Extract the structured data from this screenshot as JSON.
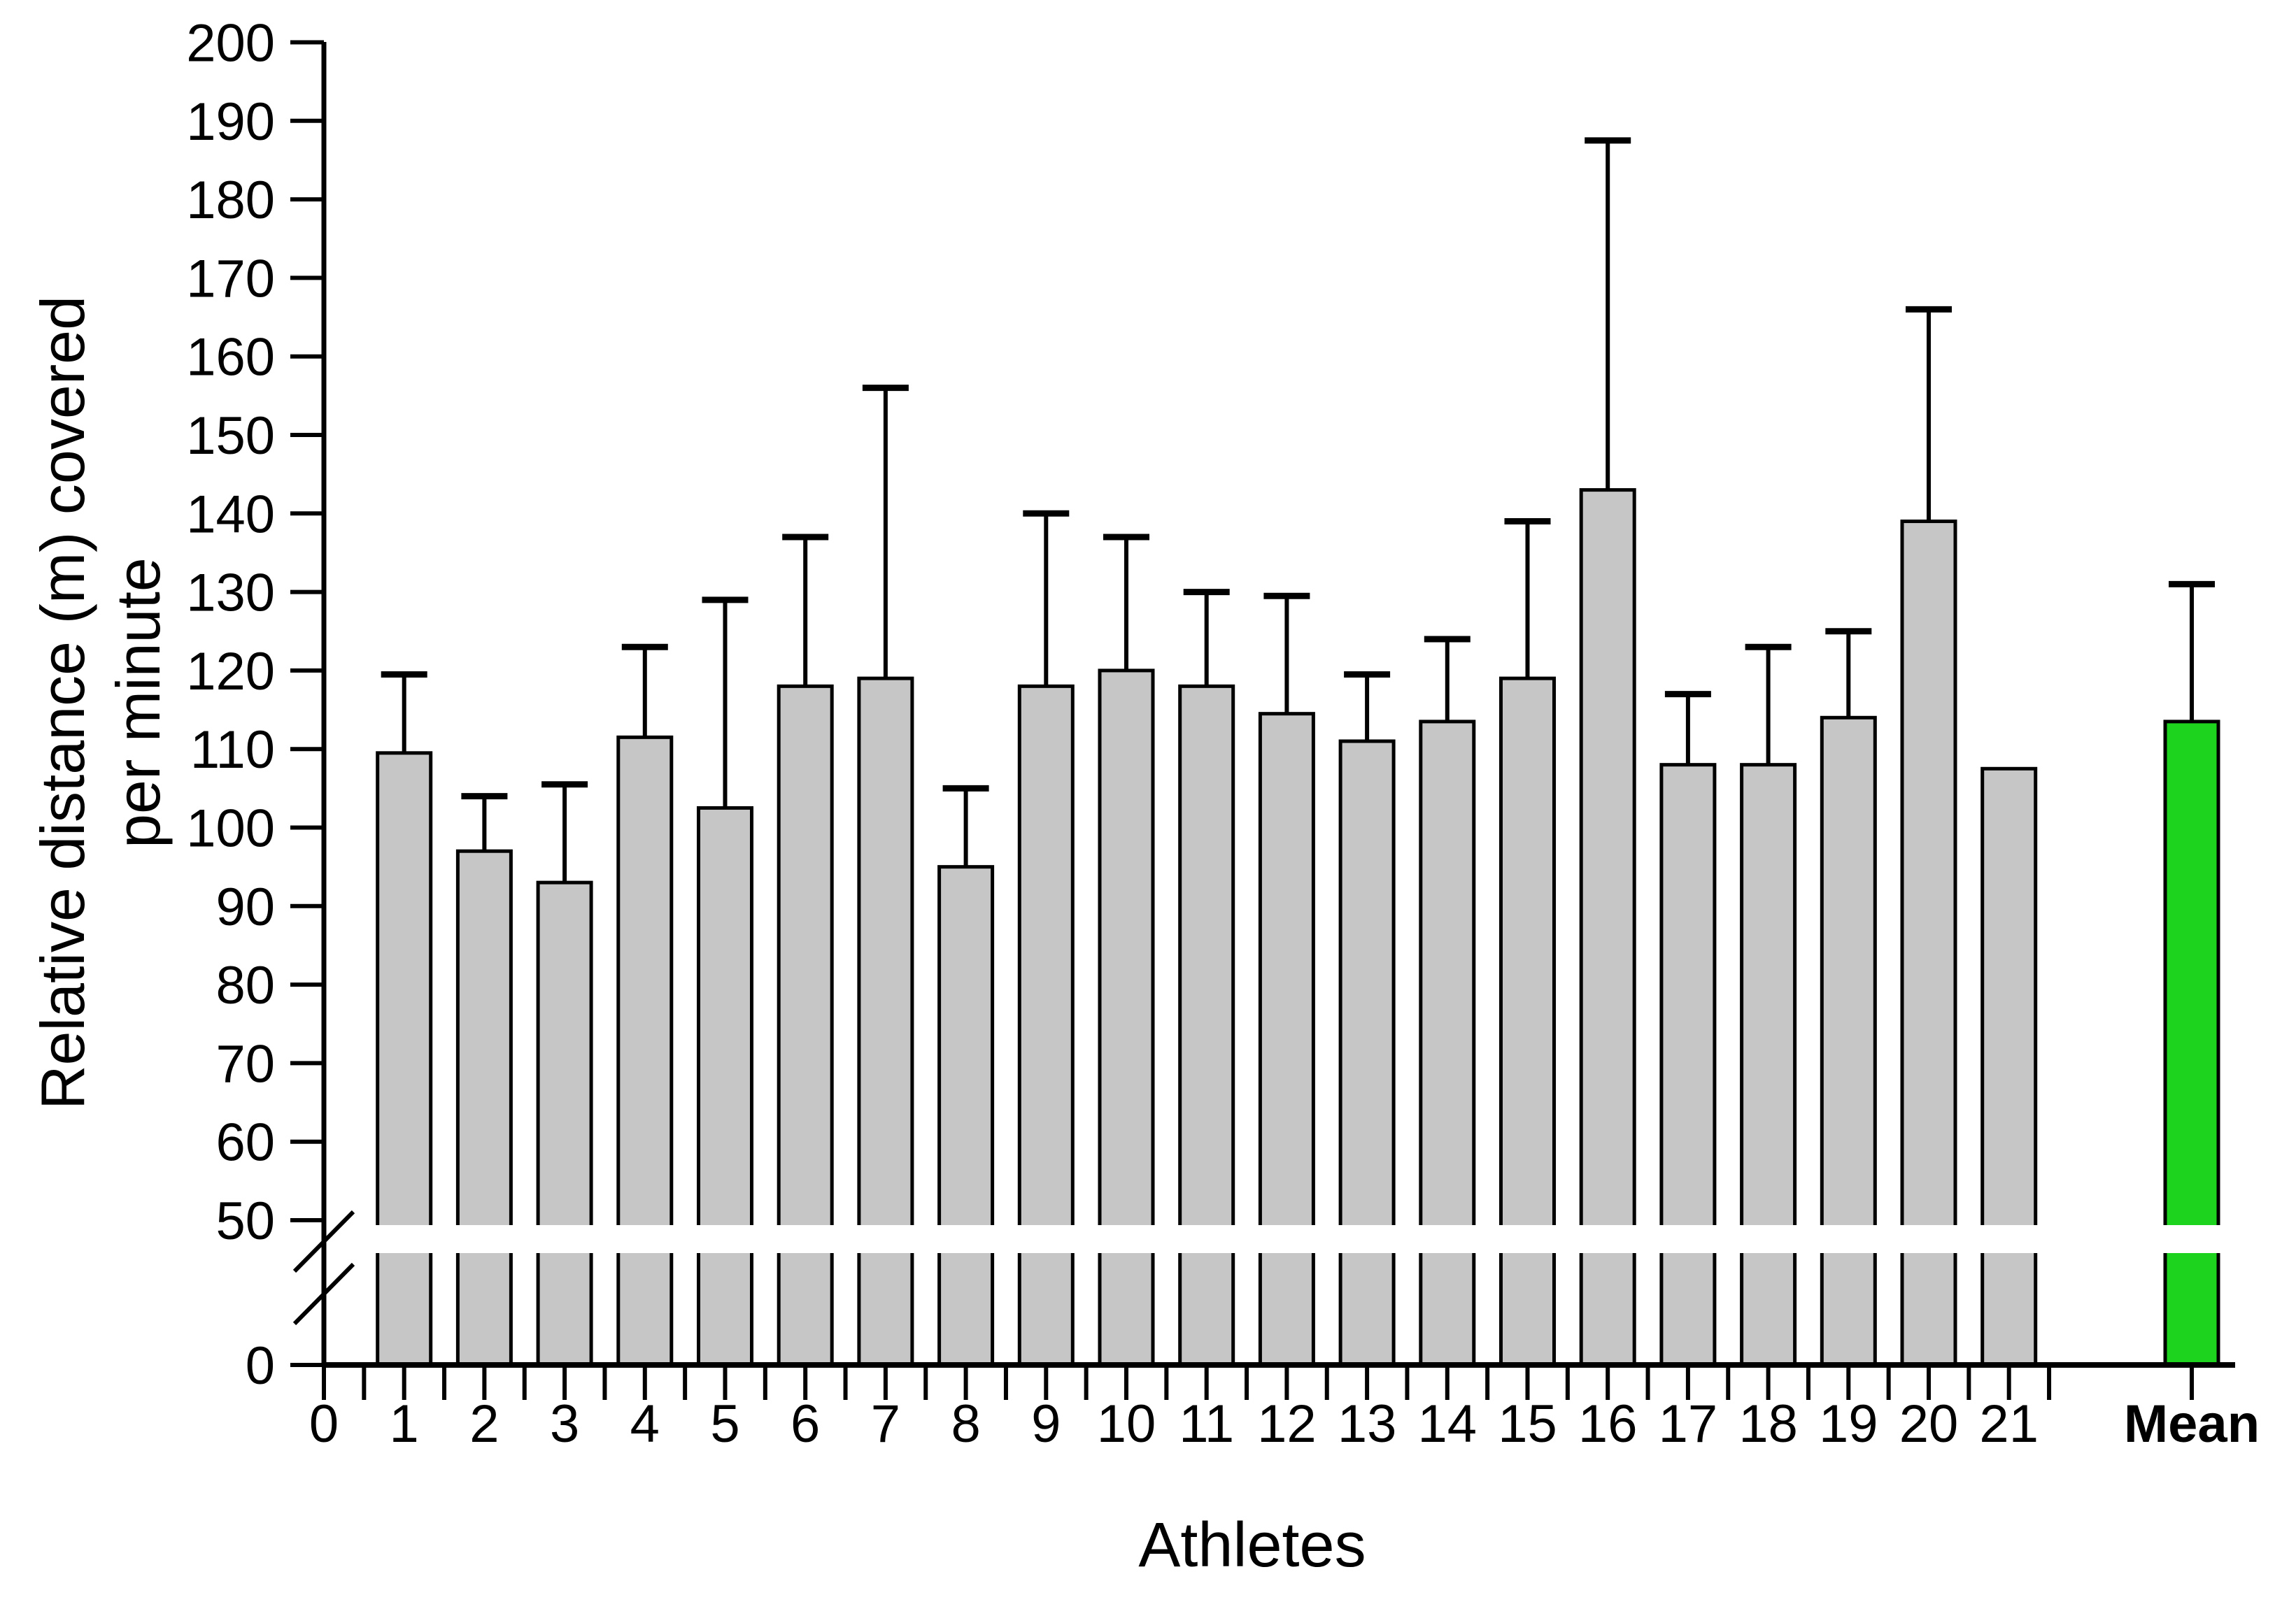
{
  "figure": {
    "x_axis_title": "Athletes",
    "y_axis_title_line1": "Relative distance (m) covered",
    "y_axis_title_line2": "per minute",
    "mean_label": "Mean",
    "zero_label": "0"
  },
  "chart_data": {
    "type": "bar",
    "title": "",
    "xlabel": "Athletes",
    "ylabel": "Relative distance (m) covered per minute",
    "categories": [
      "1",
      "2",
      "3",
      "4",
      "5",
      "6",
      "7",
      "8",
      "9",
      "10",
      "11",
      "12",
      "13",
      "14",
      "15",
      "16",
      "17",
      "18",
      "19",
      "20",
      "21",
      "Mean"
    ],
    "series": [
      {
        "name": "Relative distance (m) covered per minute",
        "values": [
          109.5,
          97,
          93,
          111.5,
          102.5,
          118,
          119,
          95,
          118,
          120,
          118,
          114.5,
          111,
          113.5,
          119,
          143,
          108,
          108,
          114,
          139,
          107.5,
          113.5
        ]
      }
    ],
    "error_bar_tops": [
      119.5,
      104,
      105.5,
      123,
      129,
      137,
      156,
      105,
      140,
      137,
      130,
      129.5,
      119.5,
      124,
      139,
      187.5,
      117,
      123,
      125,
      166,
      null,
      131
    ],
    "x_tick_labels": [
      "0",
      "1",
      "2",
      "3",
      "4",
      "5",
      "6",
      "7",
      "8",
      "9",
      "10",
      "11",
      "12",
      "13",
      "14",
      "15",
      "16",
      "17",
      "18",
      "19",
      "20",
      "21",
      "Mean"
    ],
    "y_tick_labels": [
      "0",
      "50",
      "60",
      "70",
      "80",
      "90",
      "100",
      "110",
      "120",
      "130",
      "140",
      "150",
      "160",
      "170",
      "180",
      "190",
      "200"
    ],
    "y_ticks_upper_segment": [
      50,
      60,
      70,
      80,
      90,
      100,
      110,
      120,
      130,
      140,
      150,
      160,
      170,
      180,
      190,
      200
    ],
    "ylim": [
      0,
      200
    ],
    "y_axis_break": {
      "between": [
        0,
        50
      ],
      "style": "double slash on axis with white band across bars"
    },
    "grid": false,
    "legend_position": "none",
    "bar_color": "#C6C6C6",
    "mean_bar_color": "#1ED31E",
    "bar_edge_color": "#000000",
    "error_bar_color": "#000000"
  }
}
